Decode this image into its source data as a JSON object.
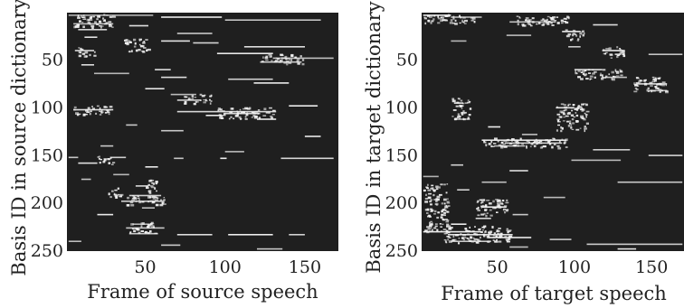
{
  "chart_data": [
    {
      "type": "heatmap",
      "xlabel": "Frame of source speech",
      "ylabel": "Basis ID in source dictionary",
      "xlim": [
        1,
        170
      ],
      "ylim": [
        1,
        250
      ],
      "x_ticks": [
        "50",
        "100",
        "150"
      ],
      "y_ticks": [
        "50",
        "100",
        "150",
        "200",
        "250"
      ],
      "colors": {
        "background": "#1f1f1f",
        "active": "#f2f2f2"
      },
      "segments": [
        {
          "y": 3,
          "x": [
            2,
            55
          ]
        },
        {
          "y": 5,
          "x": [
            60,
            98
          ]
        },
        {
          "y": 8,
          "x": [
            100,
            160
          ]
        },
        {
          "y": 12,
          "x": [
            5,
            30
          ]
        },
        {
          "y": 14,
          "x": [
            40,
            52
          ]
        },
        {
          "y": 18,
          "x": [
            8,
            26
          ]
        },
        {
          "y": 22,
          "x": [
            70,
            92
          ]
        },
        {
          "y": 26,
          "x": [
            12,
            20
          ]
        },
        {
          "y": 30,
          "x": [
            60,
            78
          ]
        },
        {
          "y": 32,
          "x": [
            80,
            96
          ]
        },
        {
          "y": 36,
          "x": [
            112,
            150
          ]
        },
        {
          "y": 40,
          "x": [
            6,
            18
          ]
        },
        {
          "y": 43,
          "x": [
            95,
            130
          ]
        },
        {
          "y": 48,
          "x": [
            130,
            168
          ]
        },
        {
          "y": 52,
          "x": [
            122,
            148
          ]
        },
        {
          "y": 55,
          "x": [
            10,
            18
          ]
        },
        {
          "y": 60,
          "x": [
            56,
            66
          ]
        },
        {
          "y": 64,
          "x": [
            18,
            40
          ]
        },
        {
          "y": 68,
          "x": [
            60,
            76
          ]
        },
        {
          "y": 70,
          "x": [
            102,
            130
          ]
        },
        {
          "y": 74,
          "x": [
            118,
            140
          ]
        },
        {
          "y": 80,
          "x": [
            50,
            62
          ]
        },
        {
          "y": 86,
          "x": [
            66,
            82
          ]
        },
        {
          "y": 92,
          "x": [
            70,
            85
          ]
        },
        {
          "y": 98,
          "x": [
            140,
            158
          ]
        },
        {
          "y": 102,
          "x": [
            5,
            30
          ]
        },
        {
          "y": 104,
          "x": [
            70,
            132
          ]
        },
        {
          "y": 106,
          "x": [
            100,
            122
          ]
        },
        {
          "y": 108,
          "x": [
            88,
            98
          ]
        },
        {
          "y": 112,
          "x": [
            120,
            132
          ]
        },
        {
          "y": 118,
          "x": [
            38,
            45
          ]
        },
        {
          "y": 124,
          "x": [
            60,
            74
          ]
        },
        {
          "y": 130,
          "x": [
            150,
            160
          ]
        },
        {
          "y": 140,
          "x": [
            22,
            30
          ]
        },
        {
          "y": 146,
          "x": [
            100,
            112
          ]
        },
        {
          "y": 152,
          "x": [
            2,
            8
          ]
        },
        {
          "y": 152,
          "x": [
            28,
            38
          ]
        },
        {
          "y": 153,
          "x": [
            68,
            74
          ]
        },
        {
          "y": 153,
          "x": [
            97,
            101
          ]
        },
        {
          "y": 153,
          "x": [
            135,
            168
          ]
        },
        {
          "y": 158,
          "x": [
            8,
            20
          ]
        },
        {
          "y": 162,
          "x": [
            50,
            58
          ]
        },
        {
          "y": 170,
          "x": [
            30,
            40
          ]
        },
        {
          "y": 175,
          "x": [
            10,
            16
          ]
        },
        {
          "y": 182,
          "x": [
            44,
            52
          ]
        },
        {
          "y": 192,
          "x": [
            40,
            60
          ]
        },
        {
          "y": 198,
          "x": [
            35,
            62
          ]
        },
        {
          "y": 205,
          "x": [
            48,
            56
          ]
        },
        {
          "y": 212,
          "x": [
            20,
            30
          ]
        },
        {
          "y": 222,
          "x": [
            42,
            54
          ]
        },
        {
          "y": 226,
          "x": [
            38,
            62
          ]
        },
        {
          "y": 232,
          "x": [
            40,
            58
          ]
        },
        {
          "y": 233,
          "x": [
            70,
            92
          ]
        },
        {
          "y": 233,
          "x": [
            102,
            130
          ]
        },
        {
          "y": 233,
          "x": [
            140,
            150
          ]
        },
        {
          "y": 240,
          "x": [
            2,
            10
          ]
        },
        {
          "y": 244,
          "x": [
            60,
            72
          ]
        },
        {
          "y": 248,
          "x": [
            120,
            136
          ]
        }
      ],
      "blobs": [
        {
          "x": [
            5,
            30
          ],
          "y": [
            2,
            16
          ]
        },
        {
          "x": [
            36,
            52
          ],
          "y": [
            28,
            42
          ]
        },
        {
          "x": [
            122,
            150
          ],
          "y": [
            44,
            54
          ]
        },
        {
          "x": [
            8,
            18
          ],
          "y": [
            36,
            46
          ]
        },
        {
          "x": [
            74,
            92
          ],
          "y": [
            86,
            96
          ]
        },
        {
          "x": [
            95,
            130
          ],
          "y": [
            100,
            112
          ]
        },
        {
          "x": [
            5,
            28
          ],
          "y": [
            98,
            108
          ]
        },
        {
          "x": [
            38,
            62
          ],
          "y": [
            192,
            202
          ]
        },
        {
          "x": [
            50,
            58
          ],
          "y": [
            176,
            194
          ]
        },
        {
          "x": [
            40,
            56
          ],
          "y": [
            220,
            232
          ]
        },
        {
          "x": [
            20,
            30
          ],
          "y": [
            150,
            160
          ]
        },
        {
          "x": [
            26,
            36
          ],
          "y": [
            184,
            194
          ]
        }
      ]
    },
    {
      "type": "heatmap",
      "xlabel": "Frame of target speech",
      "ylabel": "Basis ID in target dictionary",
      "xlim": [
        1,
        170
      ],
      "ylim": [
        1,
        250
      ],
      "x_ticks": [
        "50",
        "100",
        "150"
      ],
      "y_ticks": [
        "50",
        "100",
        "150",
        "200",
        "250"
      ],
      "colors": {
        "background": "#1f1f1f",
        "active": "#f2f2f2"
      },
      "segments": [
        {
          "y": 3,
          "x": [
            2,
            20
          ]
        },
        {
          "y": 5,
          "x": [
            20,
            40
          ]
        },
        {
          "y": 10,
          "x": [
            58,
            88
          ]
        },
        {
          "y": 13,
          "x": [
            112,
            128
          ]
        },
        {
          "y": 20,
          "x": [
            92,
            104
          ]
        },
        {
          "y": 24,
          "x": [
            56,
            72
          ]
        },
        {
          "y": 30,
          "x": [
            20,
            30
          ]
        },
        {
          "y": 36,
          "x": [
            96,
            104
          ]
        },
        {
          "y": 40,
          "x": [
            118,
            132
          ]
        },
        {
          "y": 44,
          "x": [
            148,
            170
          ]
        },
        {
          "y": 60,
          "x": [
            100,
            118
          ]
        },
        {
          "y": 68,
          "x": [
            120,
            134
          ]
        },
        {
          "y": 75,
          "x": [
            140,
            160
          ]
        },
        {
          "y": 82,
          "x": [
            148,
            160
          ]
        },
        {
          "y": 95,
          "x": [
            22,
            28
          ]
        },
        {
          "y": 100,
          "x": [
            88,
            100
          ]
        },
        {
          "y": 112,
          "x": [
            22,
            30
          ]
        },
        {
          "y": 120,
          "x": [
            44,
            52
          ]
        },
        {
          "y": 128,
          "x": [
            66,
            76
          ]
        },
        {
          "y": 134,
          "x": [
            40,
            95
          ]
        },
        {
          "y": 137,
          "x": [
            55,
            92
          ]
        },
        {
          "y": 140,
          "x": [
            48,
            68
          ]
        },
        {
          "y": 144,
          "x": [
            112,
            136
          ]
        },
        {
          "y": 150,
          "x": [
            148,
            170
          ]
        },
        {
          "y": 155,
          "x": [
            98,
            130
          ]
        },
        {
          "y": 160,
          "x": [
            20,
            28
          ]
        },
        {
          "y": 166,
          "x": [
            58,
            70
          ]
        },
        {
          "y": 172,
          "x": [
            2,
            12
          ]
        },
        {
          "y": 178,
          "x": [
            40,
            56
          ]
        },
        {
          "y": 178,
          "x": [
            128,
            170
          ]
        },
        {
          "y": 186,
          "x": [
            24,
            32
          ]
        },
        {
          "y": 194,
          "x": [
            80,
            94
          ]
        },
        {
          "y": 204,
          "x": [
            40,
            56
          ]
        },
        {
          "y": 212,
          "x": [
            60,
            70
          ]
        },
        {
          "y": 216,
          "x": [
            36,
            46
          ]
        },
        {
          "y": 222,
          "x": [
            20,
            30
          ]
        },
        {
          "y": 230,
          "x": [
            2,
            40
          ]
        },
        {
          "y": 233,
          "x": [
            18,
            60
          ]
        },
        {
          "y": 236,
          "x": [
            44,
            72
          ]
        },
        {
          "y": 238,
          "x": [
            84,
            98
          ]
        },
        {
          "y": 240,
          "x": [
            20,
            46
          ]
        },
        {
          "y": 243,
          "x": [
            108,
            170
          ]
        },
        {
          "y": 246,
          "x": [
            58,
            70
          ]
        },
        {
          "y": 248,
          "x": [
            128,
            140
          ]
        }
      ],
      "blobs": [
        {
          "x": [
            2,
            35
          ],
          "y": [
            2,
            12
          ]
        },
        {
          "x": [
            60,
            96
          ],
          "y": [
            4,
            14
          ]
        },
        {
          "x": [
            94,
            106
          ],
          "y": [
            18,
            30
          ]
        },
        {
          "x": [
            138,
            160
          ],
          "y": [
            68,
            84
          ]
        },
        {
          "x": [
            88,
            108
          ],
          "y": [
            96,
            124
          ]
        },
        {
          "x": [
            100,
            130
          ],
          "y": [
            60,
            70
          ]
        },
        {
          "x": [
            40,
            95
          ],
          "y": [
            132,
            142
          ]
        },
        {
          "x": [
            20,
            32
          ],
          "y": [
            90,
            112
          ]
        },
        {
          "x": [
            36,
            56
          ],
          "y": [
            196,
            214
          ]
        },
        {
          "x": [
            14,
            58
          ],
          "y": [
            224,
            242
          ]
        },
        {
          "x": [
            2,
            18
          ],
          "y": [
            180,
            230
          ]
        },
        {
          "x": [
            118,
            132
          ],
          "y": [
            36,
            48
          ]
        }
      ]
    }
  ]
}
